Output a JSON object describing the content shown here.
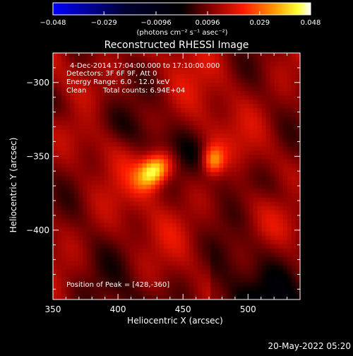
{
  "chart_data": {
    "type": "heatmap",
    "title": "Reconstructed RHESSI Image",
    "xlabel": "Heliocentric X (arcsec)",
    "ylabel": "Heliocentric Y (arcsec)",
    "xlim": [
      350,
      540
    ],
    "ylim": [
      -447,
      -280
    ],
    "xticks": [
      350,
      400,
      450,
      500
    ],
    "yticks": [
      -300,
      -350,
      -400
    ],
    "xtick_labels": [
      "350",
      "400",
      "450",
      "500"
    ],
    "ytick_labels": [
      "−300",
      "−350",
      "−400"
    ],
    "colorbar": {
      "min": -0.048,
      "max": 0.048,
      "ticks": [
        -0.048,
        -0.029,
        -0.0096,
        0.0096,
        0.029,
        0.048
      ],
      "tick_labels": [
        "−0.048",
        "−0.029",
        "−0.0096",
        "0.0096",
        "0.029",
        "0.048"
      ],
      "label": "(photons cm⁻² s⁻¹ asec⁻²)",
      "colors": [
        "#0000ff",
        "#000000",
        "#8b0000",
        "#ff0000",
        "#ff8c00",
        "#ffff00",
        "#ffffff"
      ]
    },
    "sources": [
      {
        "x": 428,
        "y": -360,
        "value": 0.048,
        "sx": 7,
        "sy": 10,
        "angle": 35
      },
      {
        "x": 473,
        "y": -353,
        "value": 0.038,
        "sx": 7,
        "sy": 6,
        "angle": 0
      }
    ],
    "background_level": 0.013,
    "annotations": {
      "line1": "4-Dec-2014 17:04:00.000 to 17:10:00.000",
      "line2": "Detectors: 3F 6F 9F, Att 0",
      "line3": "Energy Range: 6.0 - 12.0 keV",
      "line4_a": "Clean",
      "line4_b": "Total counts: 6.94E+04",
      "peak": "Position of Peak = [428,-360]"
    },
    "timestamp": "20-May-2022 05:20"
  }
}
